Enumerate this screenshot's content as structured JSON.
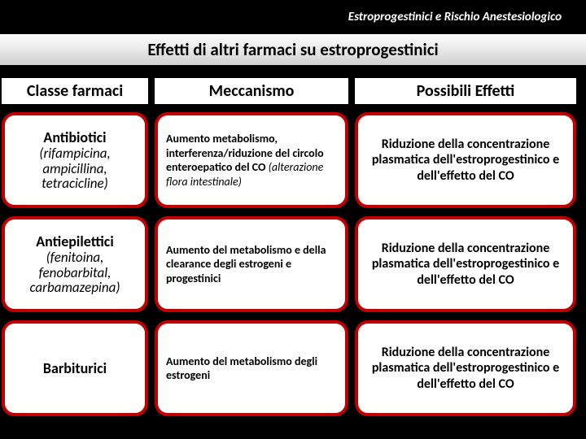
{
  "header": {
    "title": "Estroprogestinici e Rischio Anestesiologico"
  },
  "subtitle": "Effetti di altri farmaci su estroprogestinici",
  "columns": {
    "c1": "Classe  farmaci",
    "c2": "Meccanismo",
    "c3": "Possibili Effetti"
  },
  "rows": [
    {
      "class_name": "Antibiotici",
      "class_sub": "(rifampicina, ampicillina, tetracicline)",
      "mech_main": "Aumento metabolismo, interferenza/riduzione del circolo enteroepatico del CO ",
      "mech_italic": "(alterazione flora intestinale)",
      "effect": "Riduzione della concentrazione plasmatica dell'estroprogestinico e dell'effetto del CO"
    },
    {
      "class_name": "Antiepilettici",
      "class_sub": "(fenitoina, fenobarbital, carbamazepina)",
      "mech_main": "Aumento del metabolismo e della clearance degli estrogeni e progestinici",
      "mech_italic": "",
      "effect": "Riduzione della concentrazione plasmatica dell'estroprogestinico e dell'effetto del CO"
    },
    {
      "class_name": "Barbiturici",
      "class_sub": "",
      "mech_main": "Aumento del metabolismo degli estrogeni",
      "mech_italic": "",
      "effect": "Riduzione della concentrazione plasmatica dell'estroprogestinico e dell'effetto del CO"
    }
  ],
  "colors": {
    "background": "#000000",
    "cell_bg": "#ffffff",
    "cell_border": "#c00000",
    "subtitle_grad_top": "#ffffff",
    "subtitle_grad_bot": "#d0d0d0"
  }
}
